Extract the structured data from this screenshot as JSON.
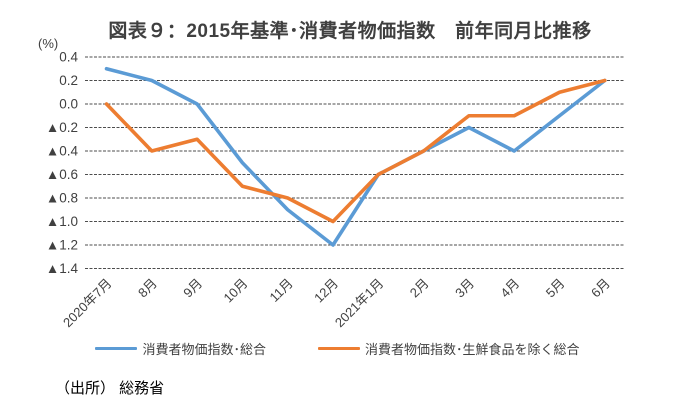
{
  "page": {
    "title": "図表９：2015年基準･消費者物価指数　前年同月比推移",
    "unit_label": "(%)",
    "source": "（出所） 総務省"
  },
  "chart_data": {
    "type": "line",
    "title": "図表９：2015年基準･消費者物価指数　前年同月比推移",
    "ylabel": "(%)",
    "categories": [
      "2020年7月",
      "8月",
      "9月",
      "10月",
      "11月",
      "12月",
      "2021年1月",
      "2月",
      "3月",
      "4月",
      "5月",
      "6月"
    ],
    "series": [
      {
        "name": "消費者物価指数･総合",
        "color": "#5B9BD5",
        "values": [
          0.3,
          0.2,
          0.0,
          -0.5,
          -0.9,
          -1.2,
          -0.6,
          -0.4,
          -0.2,
          -0.4,
          -0.1,
          0.2
        ]
      },
      {
        "name": "消費者物価指数･生鮮食品を除く総合",
        "color": "#ED7D31",
        "values": [
          0.0,
          -0.4,
          -0.3,
          -0.7,
          -0.8,
          -1.0,
          -0.6,
          -0.4,
          -0.1,
          -0.1,
          0.1,
          0.2
        ]
      }
    ],
    "ylim": [
      -1.4,
      0.4
    ],
    "y_tick_step": 0.2,
    "y_tick_labels": [
      "0.4",
      "0.2",
      "0.0",
      "▲0.2",
      "▲0.4",
      "▲0.6",
      "▲0.8",
      "▲1.0",
      "▲1.2",
      "▲1.4"
    ],
    "grid": "horizontal-dashed",
    "gridline_color": "#4d4d4d",
    "tick_label_color": "#404040",
    "legend_position": "bottom"
  }
}
